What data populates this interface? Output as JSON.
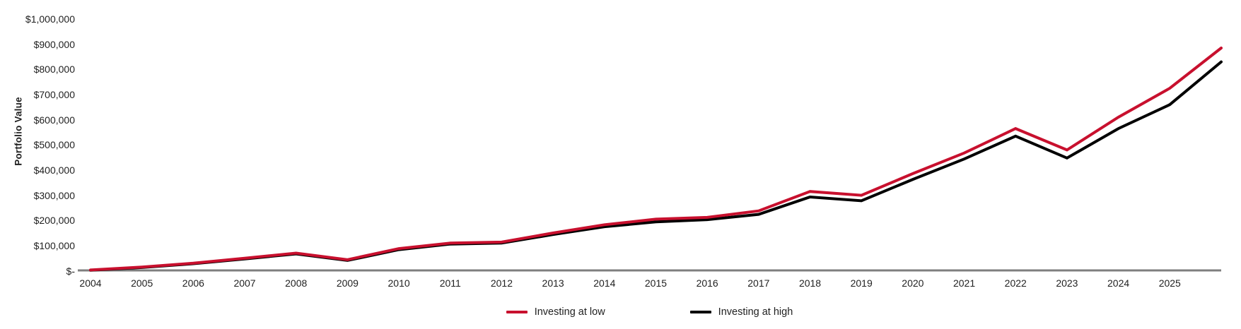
{
  "chart": {
    "y_axis_title": "Portfolio Value",
    "y_tick_labels": [
      "$1,000,000",
      "$900,000",
      "$800,000",
      "$700,000",
      "$600,000",
      "$500,000",
      "$400,000",
      "$300,000",
      "$200,000",
      "$100,000",
      "$-"
    ],
    "x_tick_labels": [
      "2004",
      "2005",
      "2006",
      "2007",
      "2008",
      "2009",
      "2010",
      "2011",
      "2012",
      "2013",
      "2014",
      "2015",
      "2016",
      "2017",
      "2018",
      "2019",
      "2020",
      "2021",
      "2022",
      "2023",
      "2024",
      "2025"
    ],
    "axis_color": "#7f7f7f",
    "text_color": "#1f1f1f"
  },
  "chart_data": {
    "type": "line",
    "title": "",
    "xlabel": "",
    "ylabel": "Portfolio Value",
    "ylim": [
      0,
      1000000
    ],
    "y_tick_step": 100000,
    "grid": false,
    "legend_position": "bottom-center",
    "x_tick_labels": [
      "2004",
      "2005",
      "2006",
      "2007",
      "2008",
      "2009",
      "2010",
      "2011",
      "2012",
      "2013",
      "2014",
      "2015",
      "2016",
      "2017",
      "2018",
      "2019",
      "2020",
      "2021",
      "2022",
      "2023",
      "2024",
      "2025"
    ],
    "x": [
      2004,
      2005,
      2006,
      2007,
      2008,
      2009,
      2010,
      2011,
      2012,
      2013,
      2014,
      2015,
      2016,
      2017,
      2018,
      2019,
      2020,
      2021,
      2022,
      2023,
      2024,
      2025,
      2026
    ],
    "note_x": "line extends one year-spacing past the last labeled tick (2025)",
    "series": [
      {
        "name": "Investing at low",
        "color": "#c8102e",
        "values": [
          3000,
          15000,
          30000,
          50000,
          70000,
          44000,
          88000,
          110000,
          114000,
          150000,
          183000,
          205000,
          212000,
          238000,
          315000,
          300000,
          386000,
          468000,
          565000,
          480000,
          610000,
          725000,
          885000
        ]
      },
      {
        "name": "Investing at high",
        "color": "#000000",
        "values": [
          2000,
          13000,
          28000,
          47000,
          67000,
          41000,
          84000,
          106000,
          110000,
          144000,
          175000,
          194000,
          203000,
          224000,
          293000,
          278000,
          363000,
          444000,
          535000,
          448000,
          565000,
          660000,
          830000
        ]
      }
    ]
  },
  "legend": {
    "items": [
      {
        "label": "Investing at low",
        "color": "#c8102e"
      },
      {
        "label": "Investing at high",
        "color": "#000000"
      }
    ]
  }
}
